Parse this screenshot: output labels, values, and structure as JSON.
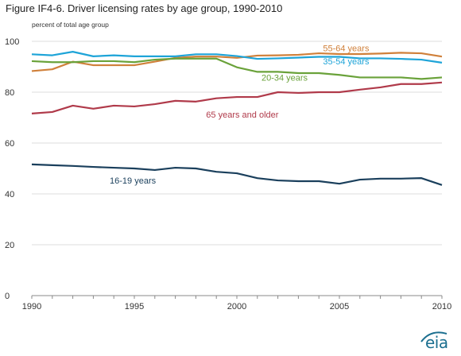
{
  "title": "Figure IF4-6. Driver licensing rates by age group, 1990-2010",
  "unit_label": "percent of total age group",
  "logo_text": "eia",
  "chart_data": {
    "type": "line",
    "ylabel": "percent of total age group",
    "xlim": [
      1990,
      2010
    ],
    "ylim": [
      0,
      100
    ],
    "x_ticks": [
      1990,
      1995,
      2000,
      2005,
      2010
    ],
    "y_ticks": [
      0,
      20,
      40,
      60,
      80,
      100
    ],
    "grid": "horizontal",
    "x": [
      1990,
      1991,
      1992,
      1993,
      1994,
      1995,
      1996,
      1997,
      1998,
      1999,
      2000,
      2001,
      2002,
      2003,
      2004,
      2005,
      2006,
      2007,
      2008,
      2009,
      2010
    ],
    "series": [
      {
        "name": "55-64 years",
        "color": "#d0803a",
        "values": [
          88.3,
          89.0,
          92.0,
          90.6,
          90.6,
          90.6,
          92.0,
          93.5,
          94.0,
          94.0,
          93.5,
          94.4,
          94.5,
          94.7,
          95.3,
          95.0,
          95.0,
          95.2,
          95.5,
          95.3,
          94.0
        ]
      },
      {
        "name": "35-54 years",
        "color": "#1ea4d8",
        "values": [
          94.9,
          94.5,
          95.9,
          94.1,
          94.5,
          94.1,
          94.1,
          94.1,
          94.9,
          94.9,
          94.2,
          93.1,
          93.3,
          93.6,
          93.9,
          93.9,
          93.3,
          93.3,
          93.1,
          92.8,
          91.6
        ]
      },
      {
        "name": "20-34 years",
        "color": "#6aa23a",
        "values": [
          92.2,
          91.8,
          91.8,
          92.2,
          92.2,
          91.8,
          92.8,
          93.2,
          93.2,
          93.2,
          89.8,
          88.0,
          88.0,
          87.5,
          87.5,
          86.8,
          85.8,
          85.8,
          85.8,
          85.2,
          85.8
        ]
      },
      {
        "name": "65 years and older",
        "color": "#b03a4a",
        "values": [
          71.6,
          72.2,
          74.7,
          73.5,
          74.7,
          74.4,
          75.3,
          76.6,
          76.3,
          77.6,
          78.1,
          78.1,
          80.0,
          79.7,
          80.0,
          80.0,
          81.0,
          81.9,
          83.2,
          83.2,
          83.8
        ]
      },
      {
        "name": "16-19 years",
        "color": "#1a3f5c",
        "values": [
          51.6,
          51.3,
          51.0,
          50.6,
          50.3,
          50.0,
          49.4,
          50.3,
          50.0,
          48.7,
          48.1,
          46.2,
          45.3,
          45.0,
          45.0,
          44.0,
          45.6,
          46.0,
          46.0,
          46.2,
          43.5
        ]
      }
    ]
  }
}
